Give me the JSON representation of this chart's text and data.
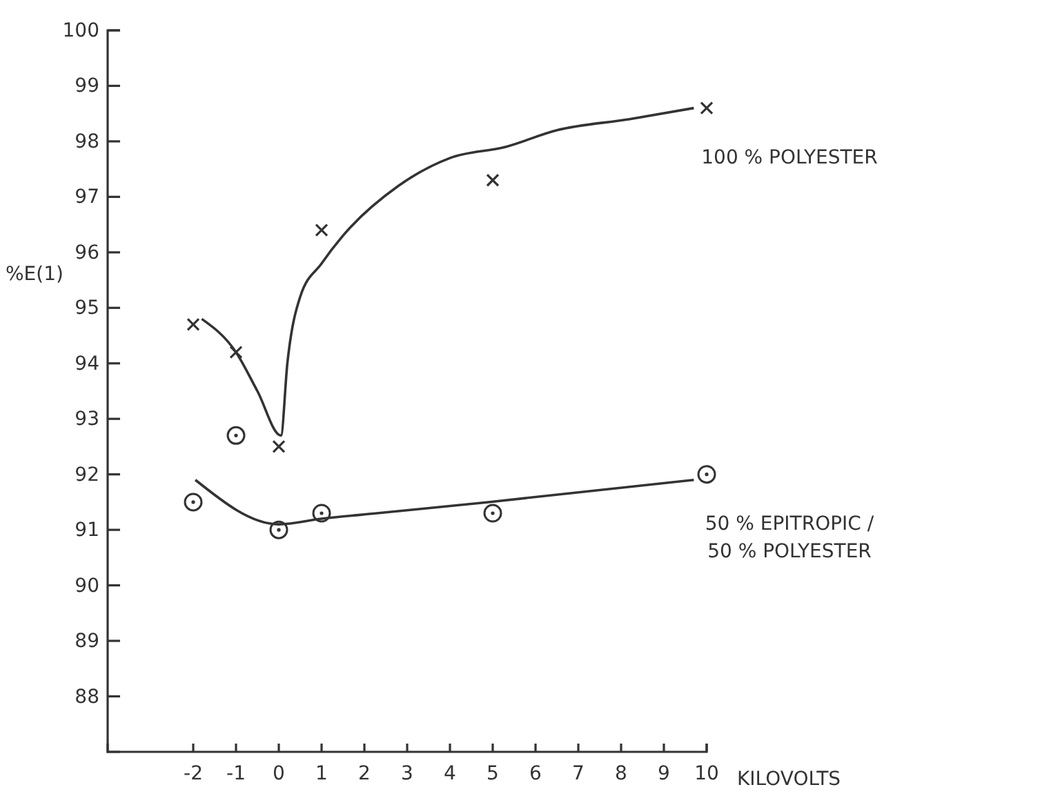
{
  "chart_data": {
    "type": "scatter",
    "xlabel": "KILOVOLTS",
    "ylabel": "%E(1)",
    "xlim": [
      -4,
      10
    ],
    "xticks": [
      -2,
      -1,
      0,
      1,
      2,
      3,
      4,
      5,
      6,
      7,
      8,
      9,
      10
    ],
    "ylim": [
      87,
      100
    ],
    "yticks": [
      88,
      89,
      90,
      91,
      92,
      93,
      94,
      95,
      96,
      97,
      98,
      99,
      100
    ],
    "grid": false,
    "series": [
      {
        "name": "100 % POLYESTER",
        "type": "scatter",
        "marker": "cross",
        "color": "#333333",
        "x": [
          -2,
          -1,
          0,
          1,
          5,
          10
        ],
        "values": [
          94.7,
          94.2,
          92.5,
          96.4,
          97.3,
          98.6
        ]
      },
      {
        "name": "50 % EPITROPIC /\n50 % POLYESTER",
        "type": "scatter",
        "marker": "circle",
        "color": "#333333",
        "x": [
          -2,
          -1,
          0,
          1,
          5,
          10
        ],
        "values": [
          91.5,
          92.7,
          91.0,
          91.3,
          91.3,
          92.0
        ]
      },
      {
        "type": "line",
        "marker": "none",
        "color": "#333333",
        "x": [
          -1.8,
          -1,
          -0.5,
          0.05,
          0.2,
          0.5,
          1,
          1.5,
          2.8,
          4,
          5.3,
          6.5,
          8.2,
          9.7
        ],
        "values": [
          94.8,
          94.2,
          93.5,
          92.7,
          94.0,
          95.2,
          95.8,
          96.3,
          97.2,
          97.7,
          97.9,
          98.2,
          98.4,
          98.6
        ]
      },
      {
        "type": "line",
        "marker": "none",
        "color": "#333333",
        "x": [
          -1.95,
          0,
          1,
          2.3,
          4.9,
          9.7
        ],
        "values": [
          91.9,
          91.1,
          91.2,
          91.3,
          91.5,
          91.9
        ]
      }
    ]
  }
}
